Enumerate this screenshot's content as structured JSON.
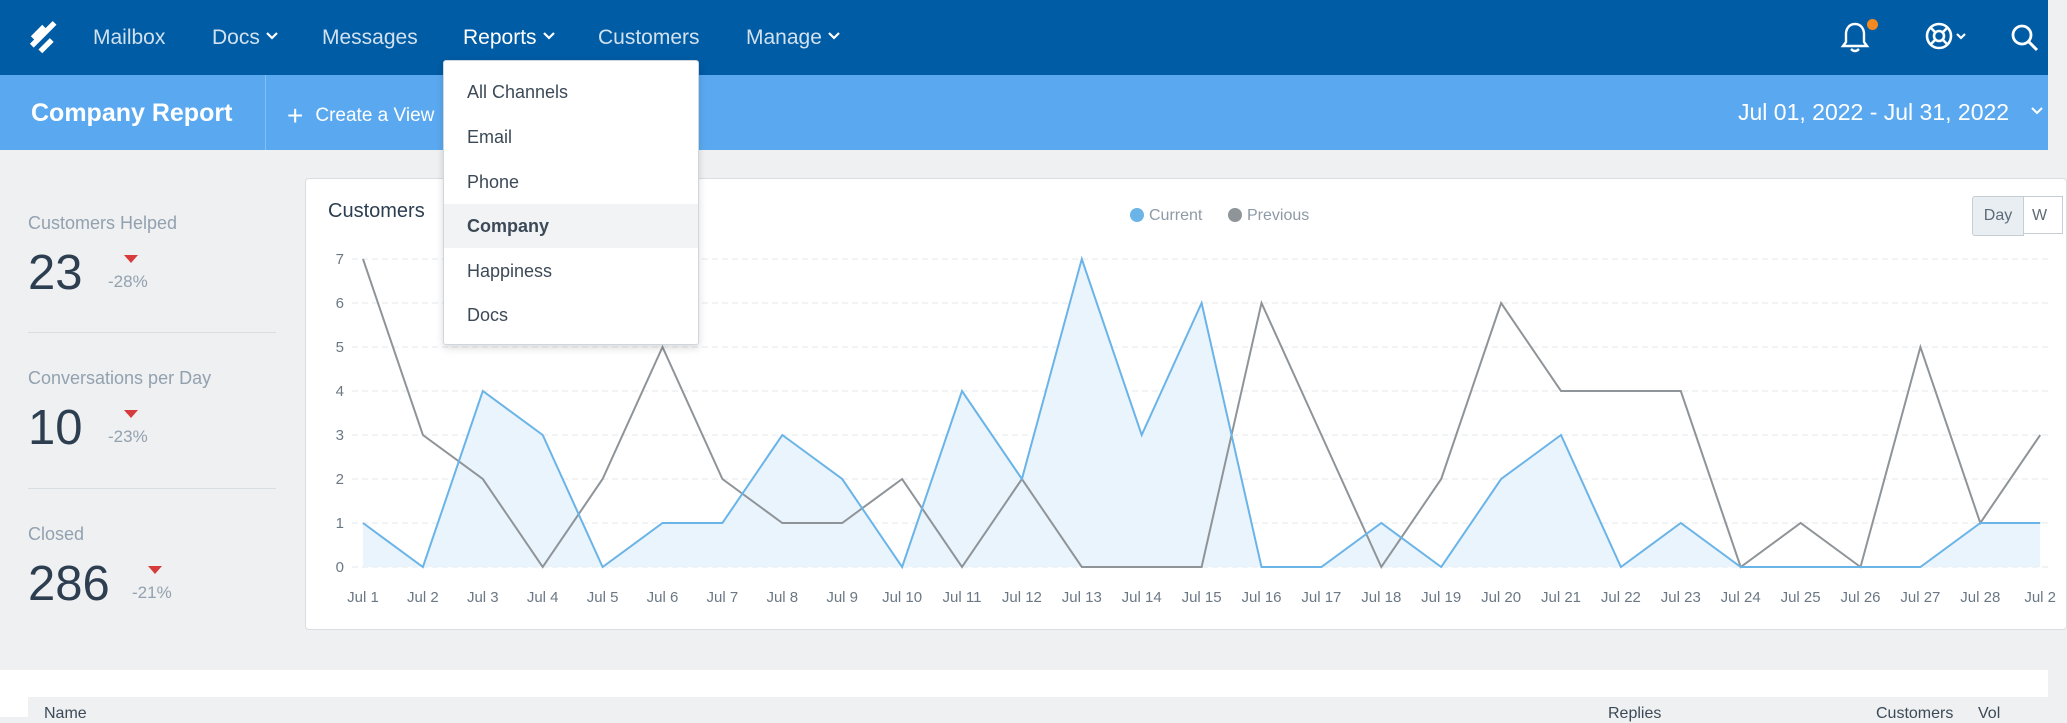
{
  "nav": {
    "items": [
      {
        "label": "Mailbox"
      },
      {
        "label": "Docs"
      },
      {
        "label": "Messages"
      },
      {
        "label": "Reports"
      },
      {
        "label": "Customers"
      },
      {
        "label": "Manage"
      }
    ],
    "icons": [
      "helpscout-logo-icon",
      "bell-icon",
      "help-lifebuoy-icon",
      "search-icon"
    ],
    "notification_color": "#f5891f"
  },
  "header": {
    "title": "Company Report",
    "create_view": "Create a View",
    "date_range": "Jul 01, 2022 - Jul 31, 2022"
  },
  "stats": [
    {
      "label": "Customers Helped",
      "value": "23",
      "change": "-28%"
    },
    {
      "label": "Conversations per Day",
      "value": "10",
      "change": "-23%"
    },
    {
      "label": "Closed",
      "value": "286",
      "change": "-21%"
    }
  ],
  "dropdown": {
    "items": [
      "All Channels",
      "Email",
      "Phone",
      "Company",
      "Happiness",
      "Docs"
    ],
    "selected": "Company"
  },
  "chart_controls": {
    "day": "Day",
    "week": "W"
  },
  "chart_data": {
    "type": "area",
    "title": "Customers",
    "categories": [
      "Jul 1",
      "Jul 2",
      "Jul 3",
      "Jul 4",
      "Jul 5",
      "Jul 6",
      "Jul 7",
      "Jul 8",
      "Jul 9",
      "Jul 10",
      "Jul 11",
      "Jul 12",
      "Jul 13",
      "Jul 14",
      "Jul 15",
      "Jul 16",
      "Jul 17",
      "Jul 18",
      "Jul 19",
      "Jul 20",
      "Jul 21",
      "Jul 22",
      "Jul 23",
      "Jul 24",
      "Jul 25",
      "Jul 26",
      "Jul 27",
      "Jul 28",
      "Jul 2"
    ],
    "ylim": [
      0,
      7
    ],
    "yticks": [
      0,
      1,
      2,
      3,
      4,
      5,
      6,
      7
    ],
    "grid": true,
    "legend_position": "top-center",
    "series": [
      {
        "name": "Current",
        "color": "#6ab4e8",
        "fill": "#e8f3fc",
        "values": [
          1,
          0,
          4,
          3,
          0,
          1,
          1,
          3,
          2,
          0,
          4,
          2,
          7,
          3,
          6,
          0,
          0,
          1,
          0,
          2,
          3,
          0,
          1,
          0,
          0,
          0,
          0,
          1,
          1
        ]
      },
      {
        "name": "Previous",
        "color": "#8f9498",
        "values": [
          7,
          3,
          2,
          0,
          2,
          5,
          2,
          1,
          1,
          2,
          0,
          2,
          0,
          0,
          0,
          6,
          3,
          0,
          2,
          6,
          4,
          4,
          4,
          0,
          1,
          0,
          5,
          1,
          3
        ]
      }
    ]
  },
  "bottom_table": {
    "headers": [
      "Name",
      "Replies",
      "Customers",
      "Vol"
    ]
  }
}
